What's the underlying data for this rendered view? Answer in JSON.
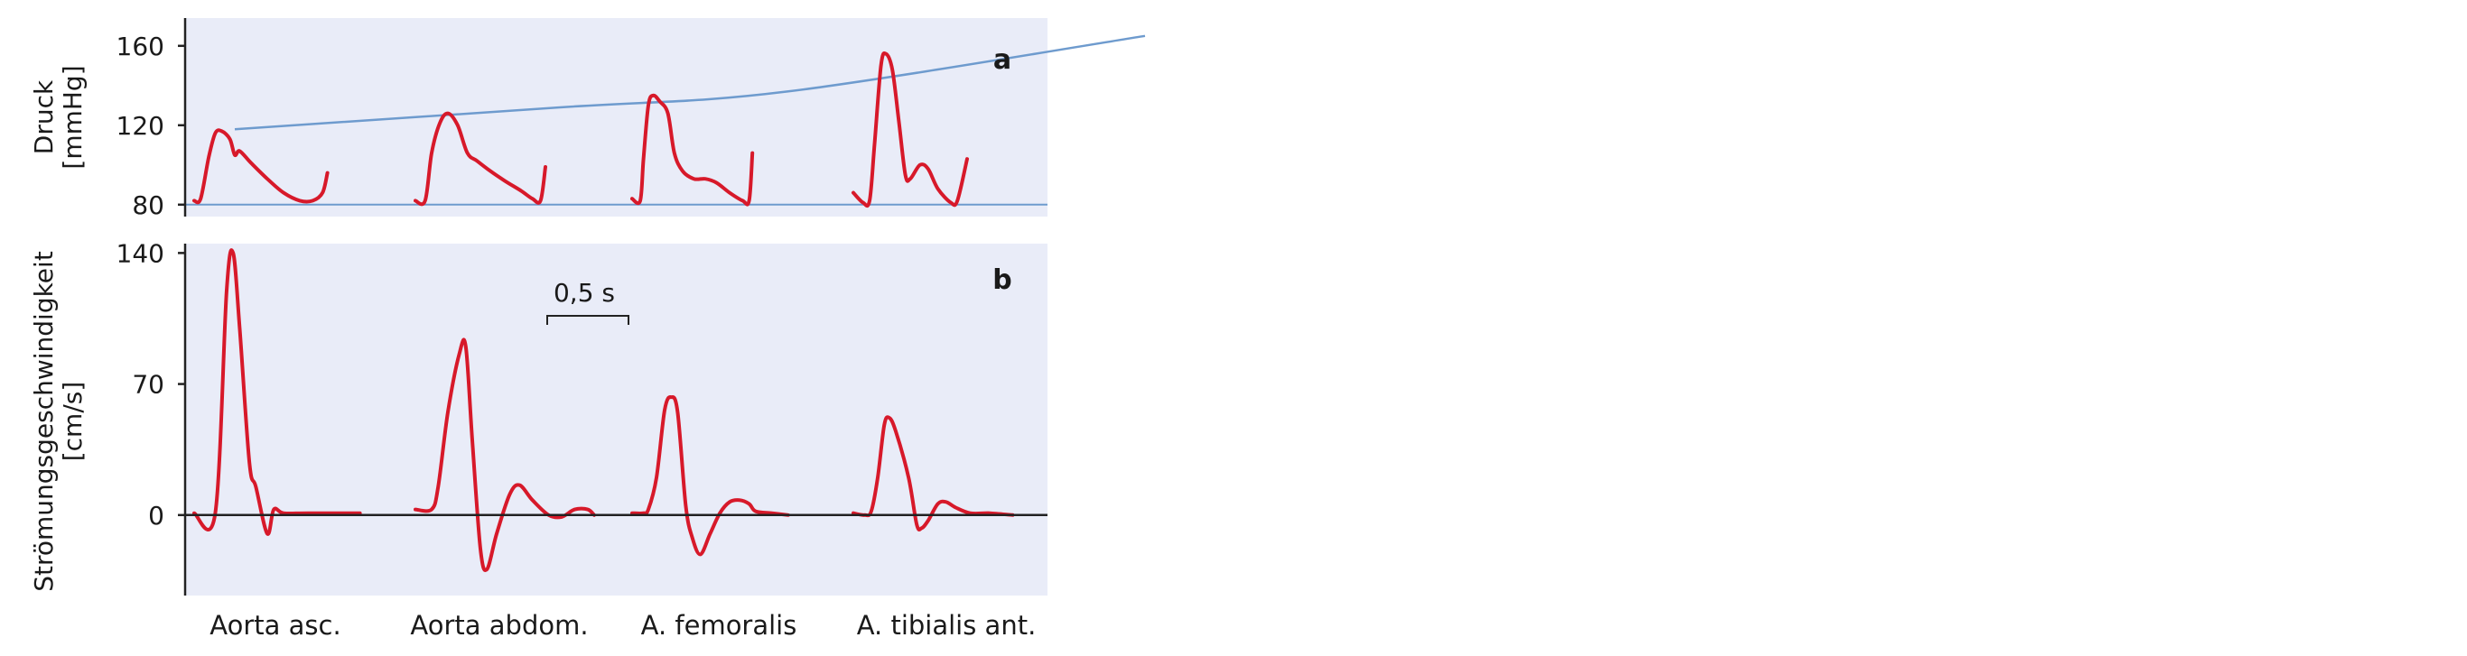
{
  "chart_data": [
    {
      "type": "line",
      "panel_label": "a",
      "ylabel_lines": [
        "Druck",
        "[mmHg]"
      ],
      "yticks": [
        80,
        120,
        160
      ],
      "ylim": [
        74,
        174
      ],
      "grid": false,
      "colors": {
        "curve": "#d7192a",
        "trend": "#6e9bce",
        "background": "#e9ecf8",
        "axis": "#222222"
      },
      "series": [
        {
          "values": [
            [
              0,
              82
            ],
            [
              0.04,
              83
            ],
            [
              0.09,
              104
            ],
            [
              0.13,
              116
            ],
            [
              0.17,
              117
            ],
            [
              0.22,
              113
            ],
            [
              0.25,
              105
            ],
            [
              0.28,
              107
            ],
            [
              0.35,
              101
            ],
            [
              0.45,
              93
            ],
            [
              0.55,
              86
            ],
            [
              0.65,
              82
            ],
            [
              0.73,
              82
            ],
            [
              0.79,
              86
            ],
            [
              0.82,
              96
            ]
          ]
        },
        {
          "values": [
            [
              0,
              82
            ],
            [
              0.06,
              82
            ],
            [
              0.1,
              106
            ],
            [
              0.15,
              121
            ],
            [
              0.2,
              126
            ],
            [
              0.26,
              120
            ],
            [
              0.32,
              106
            ],
            [
              0.38,
              102
            ],
            [
              0.46,
              97
            ],
            [
              0.55,
              92
            ],
            [
              0.65,
              87
            ],
            [
              0.72,
              83
            ],
            [
              0.77,
              82
            ],
            [
              0.8,
              99
            ]
          ]
        },
        {
          "values": [
            [
              0,
              83
            ],
            [
              0.05,
              82
            ],
            [
              0.07,
              103
            ],
            [
              0.1,
              130
            ],
            [
              0.13,
              135
            ],
            [
              0.17,
              132
            ],
            [
              0.22,
              126
            ],
            [
              0.26,
              106
            ],
            [
              0.31,
              97
            ],
            [
              0.38,
              93
            ],
            [
              0.45,
              93
            ],
            [
              0.52,
              91
            ],
            [
              0.6,
              86
            ],
            [
              0.68,
              82
            ],
            [
              0.72,
              82
            ],
            [
              0.74,
              106
            ]
          ]
        },
        {
          "values": [
            [
              0,
              86
            ],
            [
              0.06,
              81
            ],
            [
              0.1,
              82
            ],
            [
              0.13,
              110
            ],
            [
              0.17,
              150
            ],
            [
              0.2,
              156
            ],
            [
              0.24,
              148
            ],
            [
              0.28,
              122
            ],
            [
              0.32,
              95
            ],
            [
              0.35,
              93
            ],
            [
              0.41,
              100
            ],
            [
              0.46,
              98
            ],
            [
              0.52,
              88
            ],
            [
              0.6,
              81
            ],
            [
              0.64,
              82
            ],
            [
              0.7,
              103
            ]
          ]
        }
      ],
      "trend_line_values": [
        [
          0,
          118
        ],
        [
          2,
          129
        ],
        [
          3.4,
          137
        ],
        [
          5.6,
          165
        ]
      ],
      "baseline_value": 80
    },
    {
      "type": "line",
      "panel_label": "b",
      "ylabel_lines": [
        "Strömungsgeschwindigkeit",
        "[cm/s]"
      ],
      "yticks": [
        0,
        70,
        140
      ],
      "ylim": [
        -43,
        145
      ],
      "grid": false,
      "zero_line": true,
      "scale_bar": {
        "label": "0,5 s",
        "duration_s": 0.5
      },
      "categories": [
        "Aorta asc.",
        "Aorta abdom.",
        "A. femoralis",
        "A. tibialis ant."
      ],
      "series": [
        {
          "name": "Aorta asc.",
          "values": [
            [
              0,
              1
            ],
            [
              0.13,
              1
            ],
            [
              0.2,
              120
            ],
            [
              0.24,
              140
            ],
            [
              0.28,
              100
            ],
            [
              0.34,
              28
            ],
            [
              0.38,
              15
            ],
            [
              0.45,
              -10
            ],
            [
              0.49,
              3
            ],
            [
              0.55,
              1
            ],
            [
              0.7,
              1
            ],
            [
              1.02,
              1
            ]
          ]
        },
        {
          "name": "Aorta abdom.",
          "values": [
            [
              0,
              3
            ],
            [
              0.1,
              3
            ],
            [
              0.14,
              15
            ],
            [
              0.2,
              55
            ],
            [
              0.27,
              86
            ],
            [
              0.31,
              90
            ],
            [
              0.35,
              40
            ],
            [
              0.4,
              -18
            ],
            [
              0.44,
              -29
            ],
            [
              0.5,
              -10
            ],
            [
              0.58,
              11
            ],
            [
              0.64,
              16
            ],
            [
              0.72,
              8
            ],
            [
              0.82,
              0
            ],
            [
              0.9,
              -1
            ],
            [
              0.98,
              3
            ],
            [
              1.06,
              3
            ],
            [
              1.1,
              0
            ]
          ]
        },
        {
          "name": "A. femoralis",
          "values": [
            [
              0,
              1
            ],
            [
              0.07,
              1
            ],
            [
              0.1,
              3
            ],
            [
              0.15,
              20
            ],
            [
              0.2,
              56
            ],
            [
              0.24,
              63
            ],
            [
              0.28,
              55
            ],
            [
              0.33,
              5
            ],
            [
              0.37,
              -12
            ],
            [
              0.42,
              -21
            ],
            [
              0.48,
              -10
            ],
            [
              0.54,
              1
            ],
            [
              0.6,
              7
            ],
            [
              0.66,
              8
            ],
            [
              0.72,
              6
            ],
            [
              0.76,
              2
            ],
            [
              0.86,
              1
            ],
            [
              0.96,
              0
            ]
          ]
        },
        {
          "name": "A. tibialis ant.",
          "values": [
            [
              0,
              1
            ],
            [
              0.07,
              0
            ],
            [
              0.11,
              2
            ],
            [
              0.15,
              20
            ],
            [
              0.19,
              48
            ],
            [
              0.22,
              52
            ],
            [
              0.26,
              45
            ],
            [
              0.34,
              20
            ],
            [
              0.39,
              -5
            ],
            [
              0.42,
              -7
            ],
            [
              0.46,
              -3
            ],
            [
              0.52,
              6
            ],
            [
              0.57,
              7
            ],
            [
              0.63,
              4
            ],
            [
              0.72,
              1
            ],
            [
              0.84,
              1
            ],
            [
              0.98,
              0
            ]
          ]
        }
      ]
    }
  ]
}
